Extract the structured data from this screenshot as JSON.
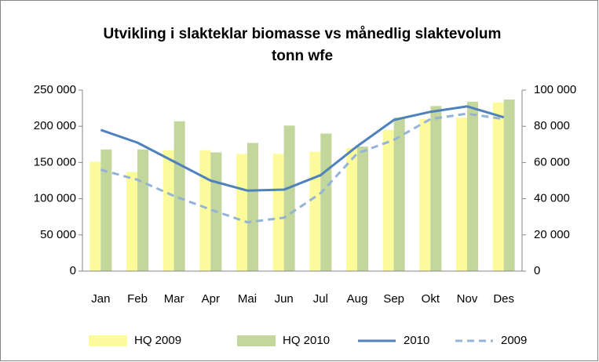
{
  "chart_data": {
    "type": "bar-line",
    "title": "Utvikling i slakteklar biomasse vs månedlig slaktevolum",
    "subtitle": "tonn wfe",
    "categories": [
      "Jan",
      "Feb",
      "Mar",
      "Apr",
      "Mai",
      "Jun",
      "Jul",
      "Aug",
      "Sep",
      "Okt",
      "Nov",
      "Des"
    ],
    "series": [
      {
        "name": "HQ 2009",
        "type": "bar",
        "color": "#fbfb9c",
        "values": [
          151000,
          137000,
          167000,
          167000,
          162000,
          162000,
          165000,
          170000,
          195000,
          210000,
          212000,
          233000
        ]
      },
      {
        "name": "HQ 2010",
        "type": "bar",
        "color": "#c3d69b",
        "values": [
          168000,
          168000,
          207000,
          164000,
          177000,
          201000,
          190000,
          172000,
          212000,
          228000,
          234000,
          237000
        ]
      },
      {
        "name": "2010",
        "type": "line",
        "axis": "y2",
        "color": "#4f81bd",
        "dashed": false,
        "values": [
          78000,
          71000,
          60500,
          50000,
          44500,
          45000,
          53000,
          69000,
          83500,
          88000,
          91000,
          85000
        ]
      },
      {
        "name": "2009",
        "type": "line",
        "axis": "y2",
        "color": "#95b3d7",
        "dashed": true,
        "values": [
          56000,
          50500,
          41500,
          34000,
          27000,
          29500,
          43000,
          65000,
          72500,
          84000,
          87000,
          84000
        ]
      }
    ],
    "ylim": [
      0,
      250000
    ],
    "yticks": [
      0,
      {
        "value": 50000,
        "label": "50 000"
      },
      {
        "value": 100000,
        "label": "100 000"
      },
      {
        "value": 150000,
        "label": "150 000"
      },
      {
        "value": 200000,
        "label": "200 000"
      },
      {
        "value": 250000,
        "label": "250 000"
      }
    ],
    "y2lim": [
      0,
      100000
    ],
    "y2ticks": [
      0,
      {
        "value": 20000,
        "label": "20 000"
      },
      {
        "value": 40000,
        "label": "40 000"
      },
      {
        "value": 60000,
        "label": "60 000"
      },
      {
        "value": 80000,
        "label": "80 000"
      },
      {
        "value": 100000,
        "label": "100 000"
      }
    ],
    "grid": false,
    "legend": "bottom"
  }
}
